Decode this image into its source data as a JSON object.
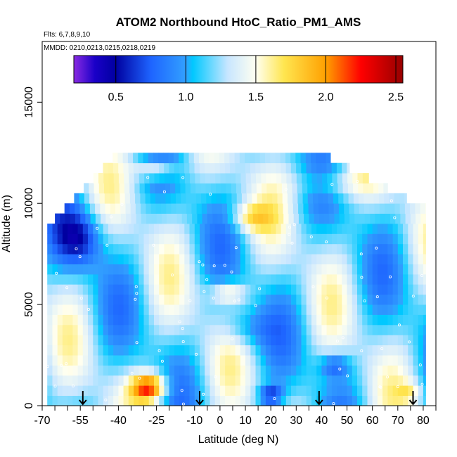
{
  "chart_data": {
    "type": "heatmap",
    "title": "ATOM2 Northbound HtoC_Ratio_PM1_AMS",
    "flights_note": "Flts: 6,7,8,9,10",
    "dates_note": "MMDD: 0210,0213,0215,0218,0219",
    "xlabel": "Latitude (deg N)",
    "ylabel": "Altitude (m)",
    "xlim": [
      -70,
      85
    ],
    "ylim": [
      0,
      18000
    ],
    "x_ticks": [
      -70,
      -55,
      -40,
      -25,
      -10,
      0,
      10,
      20,
      30,
      40,
      50,
      60,
      70,
      80
    ],
    "x_tick_labels": [
      "-70",
      "-55",
      "-40",
      "-25",
      "-10",
      "0",
      "10",
      "20",
      "30",
      "40",
      "50",
      "60",
      "70",
      "80"
    ],
    "x_minor_ticks": [
      -65,
      -60,
      -50,
      -45,
      -35,
      -30,
      -20,
      -15,
      -5,
      5,
      15,
      25,
      35,
      45,
      55,
      65,
      75,
      85
    ],
    "y_ticks": [
      0,
      5000,
      10000,
      15000
    ],
    "y_tick_labels": [
      "0",
      "5000",
      "10000",
      "15000"
    ],
    "colorbar": {
      "range": [
        0.2,
        2.55
      ],
      "ticks": [
        0.5,
        1.0,
        1.5,
        2.0,
        2.5
      ],
      "tick_labels": [
        "0.5",
        "1.0",
        "1.5",
        "2.0",
        "2.5"
      ],
      "stops": [
        {
          "v": 0.2,
          "color": "#8a2be2"
        },
        {
          "v": 0.35,
          "color": "#1a00c8"
        },
        {
          "v": 0.5,
          "color": "#0000a0"
        },
        {
          "v": 0.75,
          "color": "#1e64ff"
        },
        {
          "v": 1.0,
          "color": "#32a0ff"
        },
        {
          "v": 1.05,
          "color": "#00c8ff"
        },
        {
          "v": 1.3,
          "color": "#c8e6ff"
        },
        {
          "v": 1.5,
          "color": "#fffff0"
        },
        {
          "v": 1.7,
          "color": "#ffe650"
        },
        {
          "v": 2.0,
          "color": "#ffa000"
        },
        {
          "v": 2.25,
          "color": "#ff0000"
        },
        {
          "v": 2.55,
          "color": "#960000"
        }
      ]
    },
    "profile_arrows_lat": [
      -54,
      -8,
      39,
      76
    ]
  }
}
